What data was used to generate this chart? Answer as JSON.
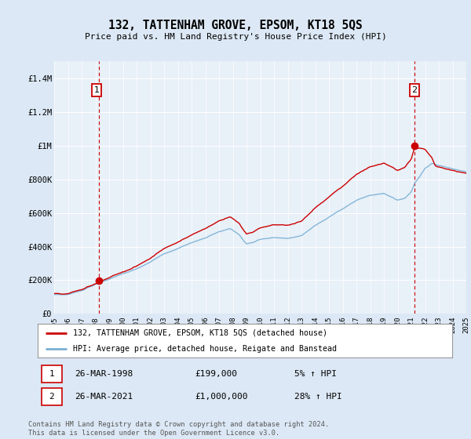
{
  "title": "132, TATTENHAM GROVE, EPSOM, KT18 5QS",
  "subtitle": "Price paid vs. HM Land Registry's House Price Index (HPI)",
  "legend_line1": "132, TATTENHAM GROVE, EPSOM, KT18 5QS (detached house)",
  "legend_line2": "HPI: Average price, detached house, Reigate and Banstead",
  "annotation1_label": "1",
  "annotation1_date": "26-MAR-1998",
  "annotation1_price": 199000,
  "annotation1_text": "£199,000",
  "annotation1_hpi": "5% ↑ HPI",
  "annotation1_year": 1998.23,
  "annotation2_label": "2",
  "annotation2_date": "26-MAR-2021",
  "annotation2_price": 1000000,
  "annotation2_text": "£1,000,000",
  "annotation2_hpi": "28% ↑ HPI",
  "annotation2_year": 2021.23,
  "footer": "Contains HM Land Registry data © Crown copyright and database right 2024.\nThis data is licensed under the Open Government Licence v3.0.",
  "red_color": "#cc0000",
  "blue_color": "#7ab0d4",
  "bg_color": "#dce8f5",
  "plot_bg": "#e8f0f8",
  "grid_color": "#ffffff",
  "annotation_box_color": "#cc0000",
  "ylim": [
    0,
    1500000
  ],
  "yticks": [
    0,
    200000,
    400000,
    600000,
    800000,
    1000000,
    1200000,
    1400000
  ],
  "ytick_labels": [
    "£0",
    "£200K",
    "£400K",
    "£600K",
    "£800K",
    "£1M",
    "£1.2M",
    "£1.4M"
  ],
  "xstart": 1995,
  "xend": 2025
}
